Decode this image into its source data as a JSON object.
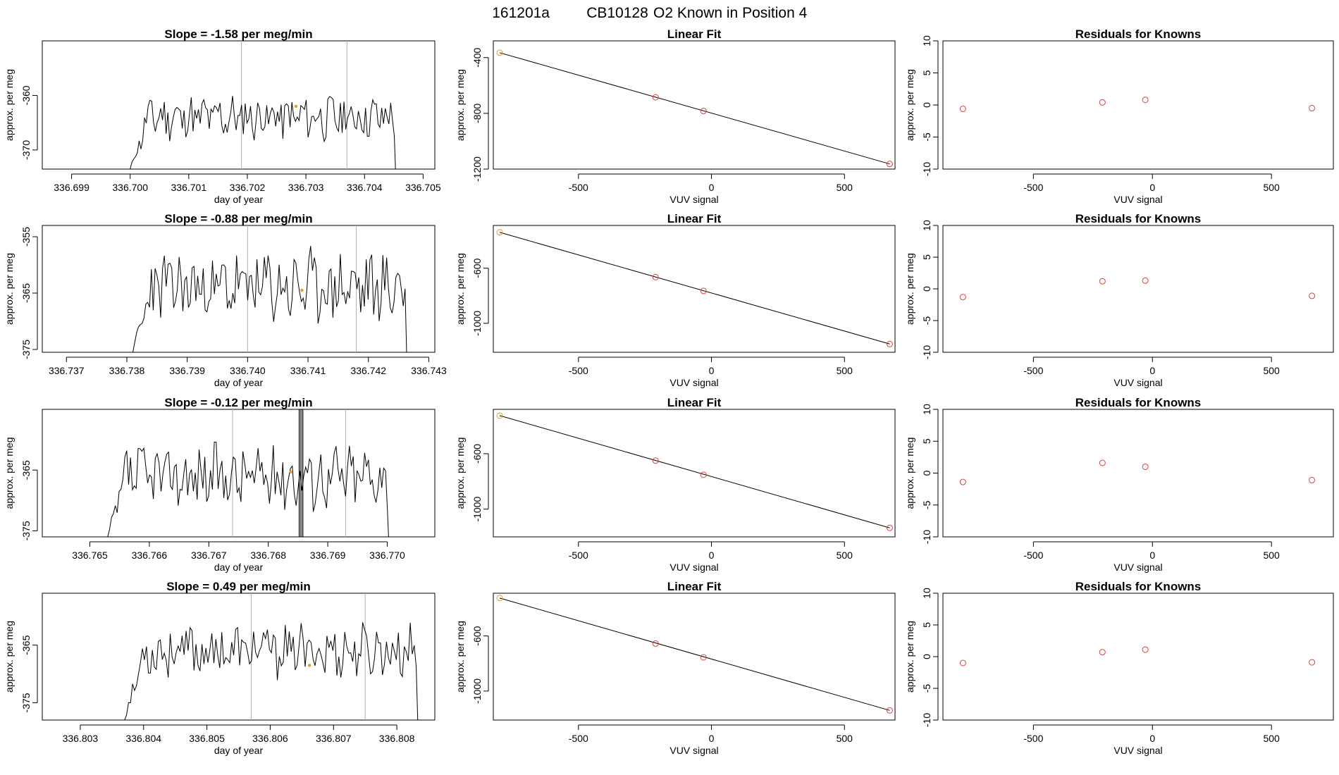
{
  "suptitle": {
    "run": "161201a",
    "tank": "CB10128",
    "label": "O2 Known in Position  4"
  },
  "colors": {
    "line": "#000000",
    "point": "#d9413a",
    "ref": "#e69a2e",
    "divider": "#b0b0b0"
  },
  "chart_data": [
    {
      "type": "line",
      "row": 0,
      "title": "Slope =  -1.58  per meg/min",
      "xlabel": "day of year",
      "ylabel": "approx. per meg",
      "xlim": [
        336.6985,
        336.7052
      ],
      "ylim": [
        -373.5,
        -350
      ],
      "xticks": [
        "336.699",
        "336.700",
        "336.701",
        "336.702",
        "336.703",
        "336.704",
        "336.705"
      ],
      "yticks": [
        "-360",
        "-370"
      ],
      "start": 336.7,
      "end": 336.7046,
      "baseline": -364,
      "amp": 3.5,
      "seed": 11,
      "dividers": [
        336.7019,
        336.7037
      ],
      "ref_point": {
        "x": 336.70283,
        "y": -362.0
      }
    },
    {
      "type": "scatter",
      "row": 0,
      "title": "Linear Fit",
      "xlabel": "VUV signal",
      "ylabel": "approx. per meg",
      "xlim": [
        -820,
        690
      ],
      "ylim": [
        -1200,
        -280
      ],
      "xticks": [
        "-500",
        "0",
        "500"
      ],
      "yticks": [
        "-400",
        "-800",
        "-1200"
      ],
      "points": [
        {
          "x": -796,
          "y": -365
        },
        {
          "x": -210,
          "y": -685
        },
        {
          "x": -30,
          "y": -783
        },
        {
          "x": 670,
          "y": -1163
        }
      ]
    },
    {
      "type": "scatter",
      "row": 0,
      "title": "Residuals for Knowns",
      "xlabel": "VUV signal",
      "ylabel": "approx. per meg",
      "xlim": [
        -880,
        760
      ],
      "ylim": [
        -10,
        10
      ],
      "xticks": [
        "-500",
        "0",
        "500"
      ],
      "yticks": [
        "10",
        "5",
        "0",
        "-5",
        "-10"
      ],
      "points": [
        {
          "x": -796,
          "y": -0.6
        },
        {
          "x": -210,
          "y": 0.4
        },
        {
          "x": -30,
          "y": 0.8
        },
        {
          "x": 670,
          "y": -0.5
        }
      ]
    },
    {
      "type": "line",
      "row": 1,
      "title": "Slope =  -0.88  per meg/min",
      "xlabel": "day of year",
      "ylabel": "approx. per meg",
      "xlim": [
        336.7366,
        336.7431
      ],
      "ylim": [
        -375.5,
        -353
      ],
      "xticks": [
        "336.737",
        "336.738",
        "336.739",
        "336.740",
        "336.741",
        "336.742",
        "336.743"
      ],
      "yticks": [
        "-355",
        "-365",
        "-375"
      ],
      "start": 336.7381,
      "end": 336.7427,
      "baseline": -364,
      "amp": 5.5,
      "seed": 23,
      "dividers": [
        336.74,
        336.7418
      ],
      "ref_point": {
        "x": 336.7409,
        "y": -364.5
      }
    },
    {
      "type": "scatter",
      "row": 1,
      "title": "Linear Fit",
      "xlabel": "VUV signal",
      "ylabel": "approx. per meg",
      "xlim": [
        -820,
        690
      ],
      "ylim": [
        -1210,
        -290
      ],
      "xticks": [
        "-500",
        "0",
        "500"
      ],
      "yticks": [
        "-600",
        "-1000"
      ],
      "points": [
        {
          "x": -796,
          "y": -340
        },
        {
          "x": -210,
          "y": -665
        },
        {
          "x": -30,
          "y": -765
        },
        {
          "x": 670,
          "y": -1150
        }
      ]
    },
    {
      "type": "scatter",
      "row": 1,
      "title": "Residuals for Knowns",
      "xlabel": "VUV signal",
      "ylabel": "approx. per meg",
      "xlim": [
        -880,
        760
      ],
      "ylim": [
        -10,
        10
      ],
      "xticks": [
        "-500",
        "0",
        "500"
      ],
      "yticks": [
        "10",
        "5",
        "0",
        "-5",
        "-10"
      ],
      "points": [
        {
          "x": -796,
          "y": -1.3
        },
        {
          "x": -210,
          "y": 1.2
        },
        {
          "x": -30,
          "y": 1.3
        },
        {
          "x": 670,
          "y": -1.1
        }
      ]
    },
    {
      "type": "line",
      "row": 2,
      "title": "Slope =  -0.12  per meg/min",
      "xlabel": "day of year",
      "ylabel": "approx. per meg",
      "xlim": [
        336.7642,
        336.7708
      ],
      "ylim": [
        -376,
        -355
      ],
      "xticks": [
        "336.765",
        "336.766",
        "336.767",
        "336.768",
        "336.769",
        "336.770"
      ],
      "yticks": [
        "-365",
        "-375"
      ],
      "start": 336.7653,
      "end": 336.7701,
      "baseline": -366,
      "amp": 4.5,
      "seed": 37,
      "dividers": [
        336.7674,
        336.7693
      ],
      "spike": 336.76855,
      "ref_point": {
        "x": 336.76838,
        "y": -365.3
      }
    },
    {
      "type": "scatter",
      "row": 2,
      "title": "Linear Fit",
      "xlabel": "VUV signal",
      "ylabel": "approx. per meg",
      "xlim": [
        -820,
        690
      ],
      "ylim": [
        -1200,
        -280
      ],
      "xticks": [
        "-500",
        "0",
        "500"
      ],
      "yticks": [
        "-600",
        "-1000"
      ],
      "points": [
        {
          "x": -796,
          "y": -325
        },
        {
          "x": -210,
          "y": -650
        },
        {
          "x": -30,
          "y": -752
        },
        {
          "x": 670,
          "y": -1135
        }
      ]
    },
    {
      "type": "scatter",
      "row": 2,
      "title": "Residuals for Knowns",
      "xlabel": "VUV signal",
      "ylabel": "approx. per meg",
      "xlim": [
        -880,
        760
      ],
      "ylim": [
        -10,
        10
      ],
      "xticks": [
        "-500",
        "0",
        "500"
      ],
      "yticks": [
        "10",
        "5",
        "0",
        "-5",
        "-10"
      ],
      "points": [
        {
          "x": -796,
          "y": -1.4
        },
        {
          "x": -210,
          "y": 1.6
        },
        {
          "x": -30,
          "y": 1.0
        },
        {
          "x": 670,
          "y": -1.1
        }
      ]
    },
    {
      "type": "line",
      "row": 3,
      "title": "Slope =  0.49  per meg/min",
      "xlabel": "day of year",
      "ylabel": "approx. per meg",
      "xlim": [
        336.8024,
        336.8086
      ],
      "ylim": [
        -378,
        -356
      ],
      "xticks": [
        "336.803",
        "336.804",
        "336.805",
        "336.806",
        "336.807",
        "336.808"
      ],
      "yticks": [
        "-365",
        "-375"
      ],
      "start": 336.8037,
      "end": 336.8084,
      "baseline": -366,
      "amp": 4.0,
      "seed": 53,
      "dividers": [
        336.8057,
        336.8075
      ],
      "ref_point": {
        "x": 336.80662,
        "y": -368.5
      }
    },
    {
      "type": "scatter",
      "row": 3,
      "title": "Linear Fit",
      "xlabel": "VUV signal",
      "ylabel": "approx. per meg",
      "xlim": [
        -820,
        690
      ],
      "ylim": [
        -1210,
        -290
      ],
      "xticks": [
        "-500",
        "0",
        "500"
      ],
      "yticks": [
        "-600",
        "-1000"
      ],
      "points": [
        {
          "x": -796,
          "y": -325
        },
        {
          "x": -210,
          "y": -655
        },
        {
          "x": -30,
          "y": -755
        },
        {
          "x": 670,
          "y": -1140
        }
      ]
    },
    {
      "type": "scatter",
      "row": 3,
      "title": "Residuals for Knowns",
      "xlabel": "VUV signal",
      "ylabel": "approx. per meg",
      "xlim": [
        -880,
        760
      ],
      "ylim": [
        -10,
        10
      ],
      "xticks": [
        "-500",
        "0",
        "500"
      ],
      "yticks": [
        "10",
        "5",
        "0",
        "-5",
        "-10"
      ],
      "points": [
        {
          "x": -796,
          "y": -1.0
        },
        {
          "x": -210,
          "y": 0.7
        },
        {
          "x": -30,
          "y": 1.1
        },
        {
          "x": 670,
          "y": -0.9
        }
      ]
    }
  ]
}
